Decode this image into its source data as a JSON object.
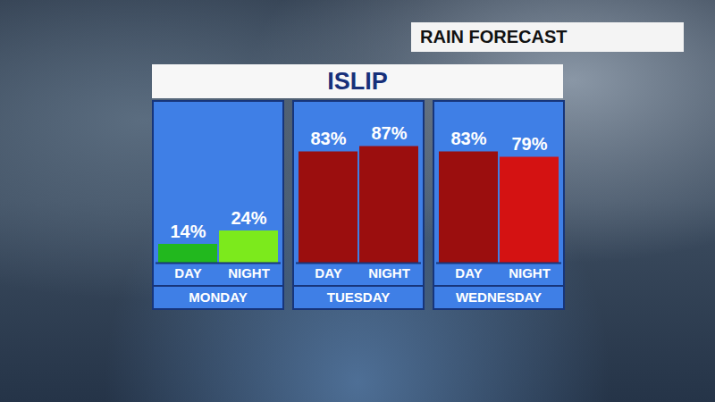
{
  "chart_data": {
    "type": "bar",
    "title": "ISLIP",
    "subtitle": "RAIN FORECAST",
    "categories": [
      "DAY",
      "NIGHT"
    ],
    "ylim": [
      0,
      120
    ],
    "tick_labels": "x",
    "data_labels": true,
    "panels": [
      {
        "title": "MONDAY",
        "values": [
          14,
          24
        ],
        "value_labels": [
          "14%",
          "24%"
        ],
        "colors": [
          "#22b81e",
          "#7cea1c"
        ]
      },
      {
        "title": "TUESDAY",
        "values": [
          83,
          87
        ],
        "value_labels": [
          "83%",
          "87%"
        ],
        "colors": [
          "#9b0e0e",
          "#9b0e0e"
        ]
      },
      {
        "title": "WEDNESDAY",
        "values": [
          83,
          79
        ],
        "value_labels": [
          "83%",
          "79%"
        ],
        "colors": [
          "#9b0e0e",
          "#d41212"
        ]
      }
    ]
  }
}
